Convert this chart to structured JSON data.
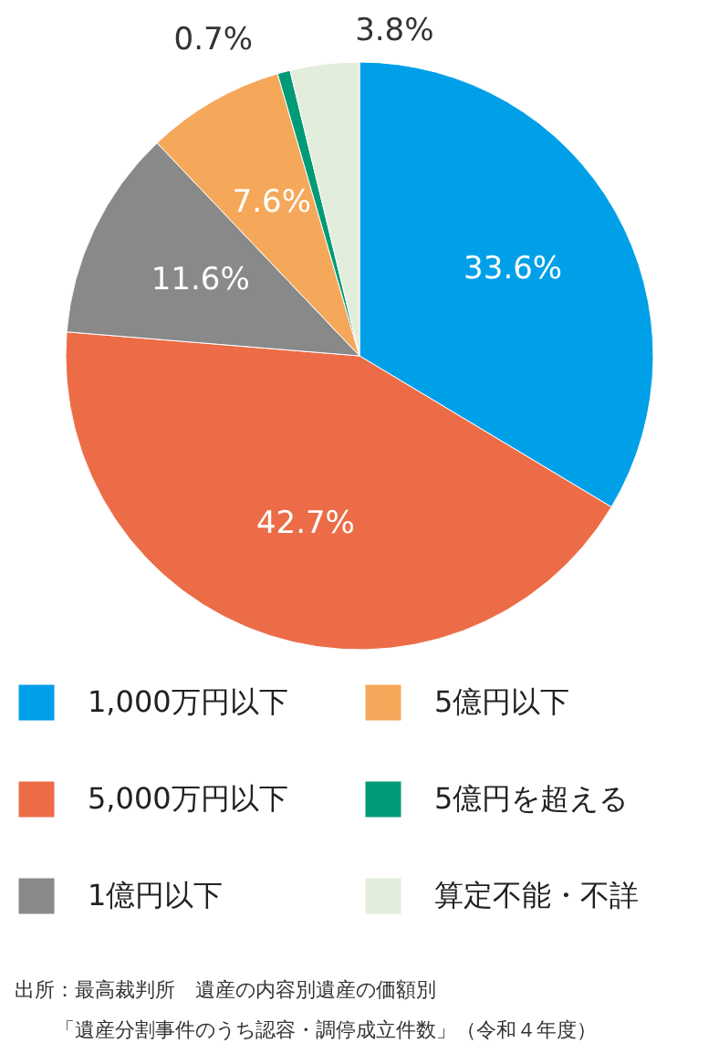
{
  "chart_data": {
    "type": "pie",
    "categories": [
      "1,000万円以下",
      "5,000万円以下",
      "1億円以下",
      "5億円以下",
      "5億円を超える",
      "算定不能・不詳"
    ],
    "values": [
      33.6,
      42.7,
      11.6,
      7.6,
      0.7,
      3.8
    ],
    "colors": [
      "#00a0e9",
      "#ec6c47",
      "#898989",
      "#f5a85a",
      "#009a76",
      "#e2eedb"
    ],
    "value_labels": [
      "33.6%",
      "42.7%",
      "11.6%",
      "7.6%",
      "0.7%",
      "3.8%"
    ],
    "legend": "bottom",
    "annotations": [
      "出所：最高裁判所　遺産の内容別遺産の価額別",
      "「遺産分割事件のうち認容・調停成立件数」（令和４年度）"
    ]
  }
}
